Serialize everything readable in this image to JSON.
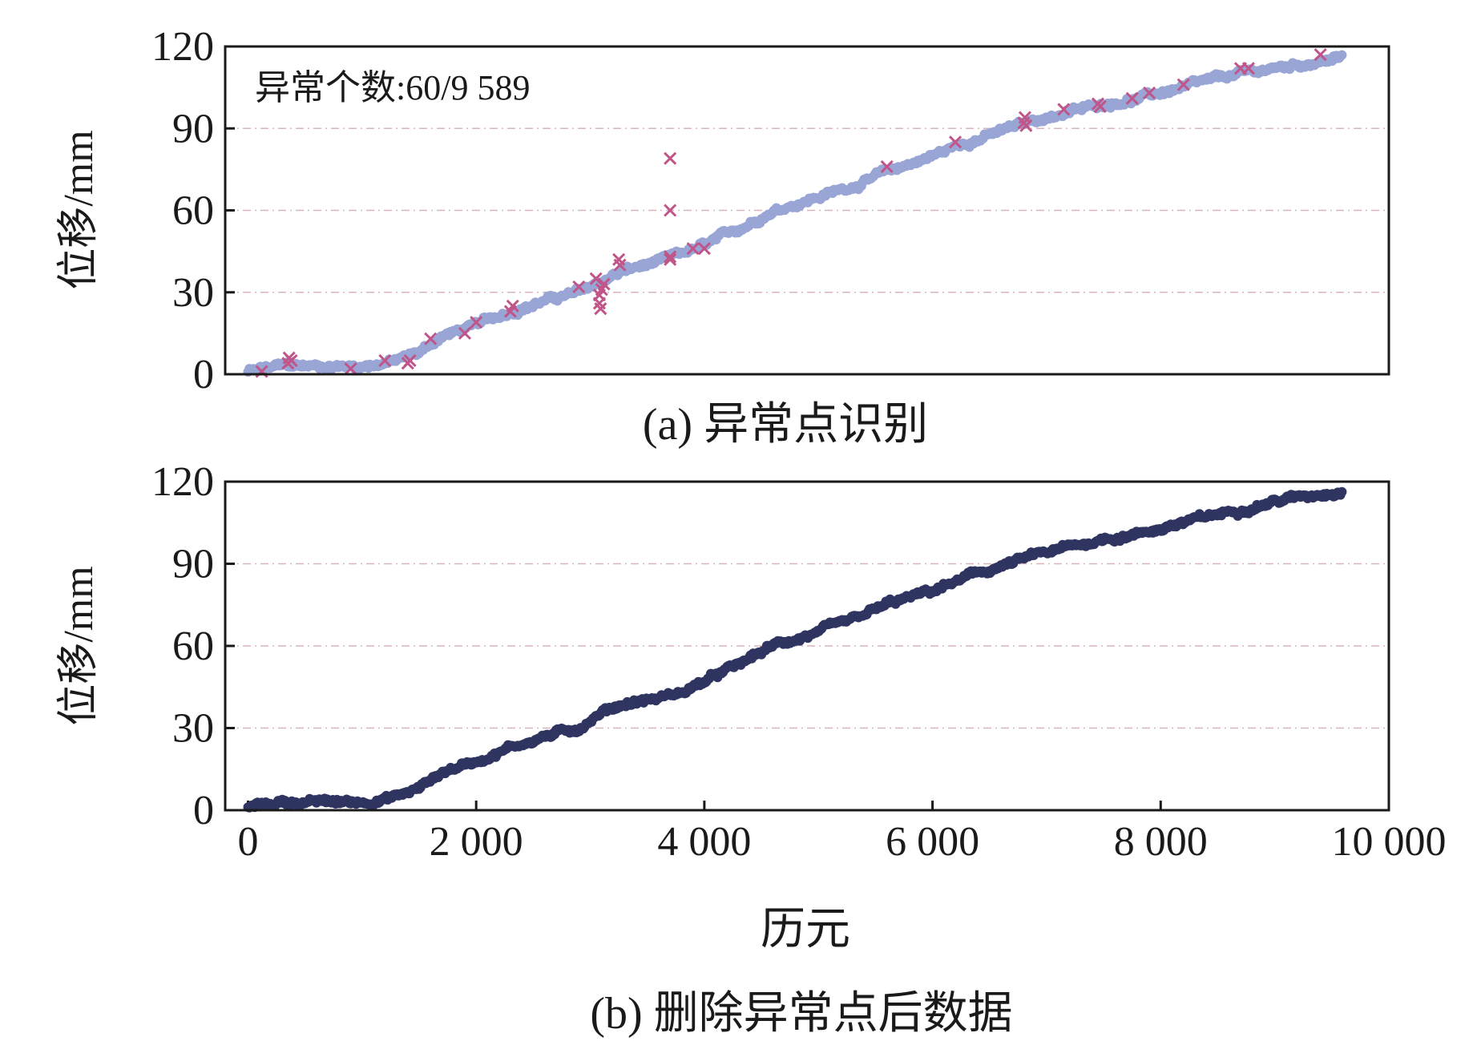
{
  "figure": {
    "panel_a_caption": "(a) 异常点识别",
    "panel_b_caption": "(b) 删除异常点后数据",
    "annotation": "异常个数:60/9 589",
    "ylabel": "位移/mm",
    "xlabel": "历元"
  },
  "colors": {
    "raw": "#98a5d5",
    "anomaly": "#c0558a",
    "clean": "#2f3560",
    "grid": "#d8b4bc"
  },
  "chart_data": [
    {
      "type": "scatter",
      "panel": "a",
      "ylabel": "位移/mm",
      "ylim": [
        0,
        120
      ],
      "yticks": [
        "0",
        "30",
        "60",
        "90",
        "120"
      ],
      "xlim": [
        -200,
        10000
      ],
      "grid": "horizontal dashed",
      "annotation": "异常个数:60/9 589",
      "series": [
        {
          "marker": "dense dots",
          "x": [
            0,
            300,
            700,
            1000,
            1300,
            1500,
            1700,
            2000,
            2300,
            2600,
            2900,
            3100,
            3300,
            3600,
            3800,
            4000,
            4300,
            4600,
            5000,
            5300,
            5600,
            6000,
            6300,
            6600,
            6900,
            7200,
            7500,
            7800,
            8100,
            8400,
            8700,
            9000,
            9300,
            9589
          ],
          "y": [
            1,
            3,
            3,
            3,
            5,
            8,
            14,
            18,
            23,
            27,
            30,
            34,
            38,
            41,
            44,
            47,
            53,
            60,
            65,
            69,
            74,
            80,
            85,
            89,
            93,
            96,
            99,
            101,
            104,
            107,
            110,
            112,
            114,
            116
          ]
        },
        {
          "marker": "x",
          "x": [
            120,
            350,
            360,
            380,
            900,
            1200,
            1400,
            1420,
            1600,
            1900,
            2000,
            2300,
            2320,
            2900,
            3050,
            3080,
            3080,
            3090,
            3100,
            3120,
            3250,
            3260,
            3700,
            3700,
            3700,
            3700,
            3900,
            4000,
            5600,
            6200,
            6800,
            6810,
            6820,
            7150,
            7450,
            7470,
            7750,
            7900,
            8200,
            8700,
            8770,
            9400
          ],
          "y": [
            1,
            4,
            6,
            5,
            2,
            5,
            4,
            5,
            13,
            15,
            19,
            23,
            25,
            32,
            35,
            29,
            26,
            24,
            31,
            33,
            42,
            40,
            79,
            60,
            42,
            43,
            46,
            46,
            76,
            85,
            92,
            94,
            91,
            97,
            99,
            98,
            101,
            103,
            106,
            112,
            112,
            117
          ]
        }
      ]
    },
    {
      "type": "scatter",
      "panel": "b",
      "xlabel": "历元",
      "ylabel": "位移/mm",
      "ylim": [
        0,
        120
      ],
      "yticks": [
        "0",
        "30",
        "60",
        "90",
        "120"
      ],
      "xlim": [
        -200,
        10000
      ],
      "xticks": [
        0,
        2000,
        4000,
        6000,
        8000,
        10000
      ],
      "xticklabels": [
        "0",
        "2 000",
        "4 000",
        "6 000",
        "8 000",
        "10 000"
      ],
      "grid": "horizontal dashed",
      "series": [
        {
          "marker": "dense dots",
          "x": [
            0,
            300,
            700,
            1000,
            1300,
            1500,
            1700,
            2000,
            2300,
            2600,
            2900,
            3100,
            3300,
            3600,
            3800,
            4000,
            4300,
            4600,
            5000,
            5300,
            5600,
            6000,
            6300,
            6600,
            6900,
            7200,
            7500,
            7800,
            8100,
            8400,
            8700,
            9000,
            9300,
            9589
          ],
          "y": [
            1,
            3,
            3,
            3,
            5,
            8,
            14,
            18,
            23,
            27,
            30,
            36,
            39,
            41,
            43,
            47,
            53,
            60,
            65,
            69,
            75,
            80,
            85,
            89,
            93,
            96,
            99,
            101,
            104,
            107,
            110,
            113,
            115,
            117
          ]
        }
      ]
    }
  ]
}
